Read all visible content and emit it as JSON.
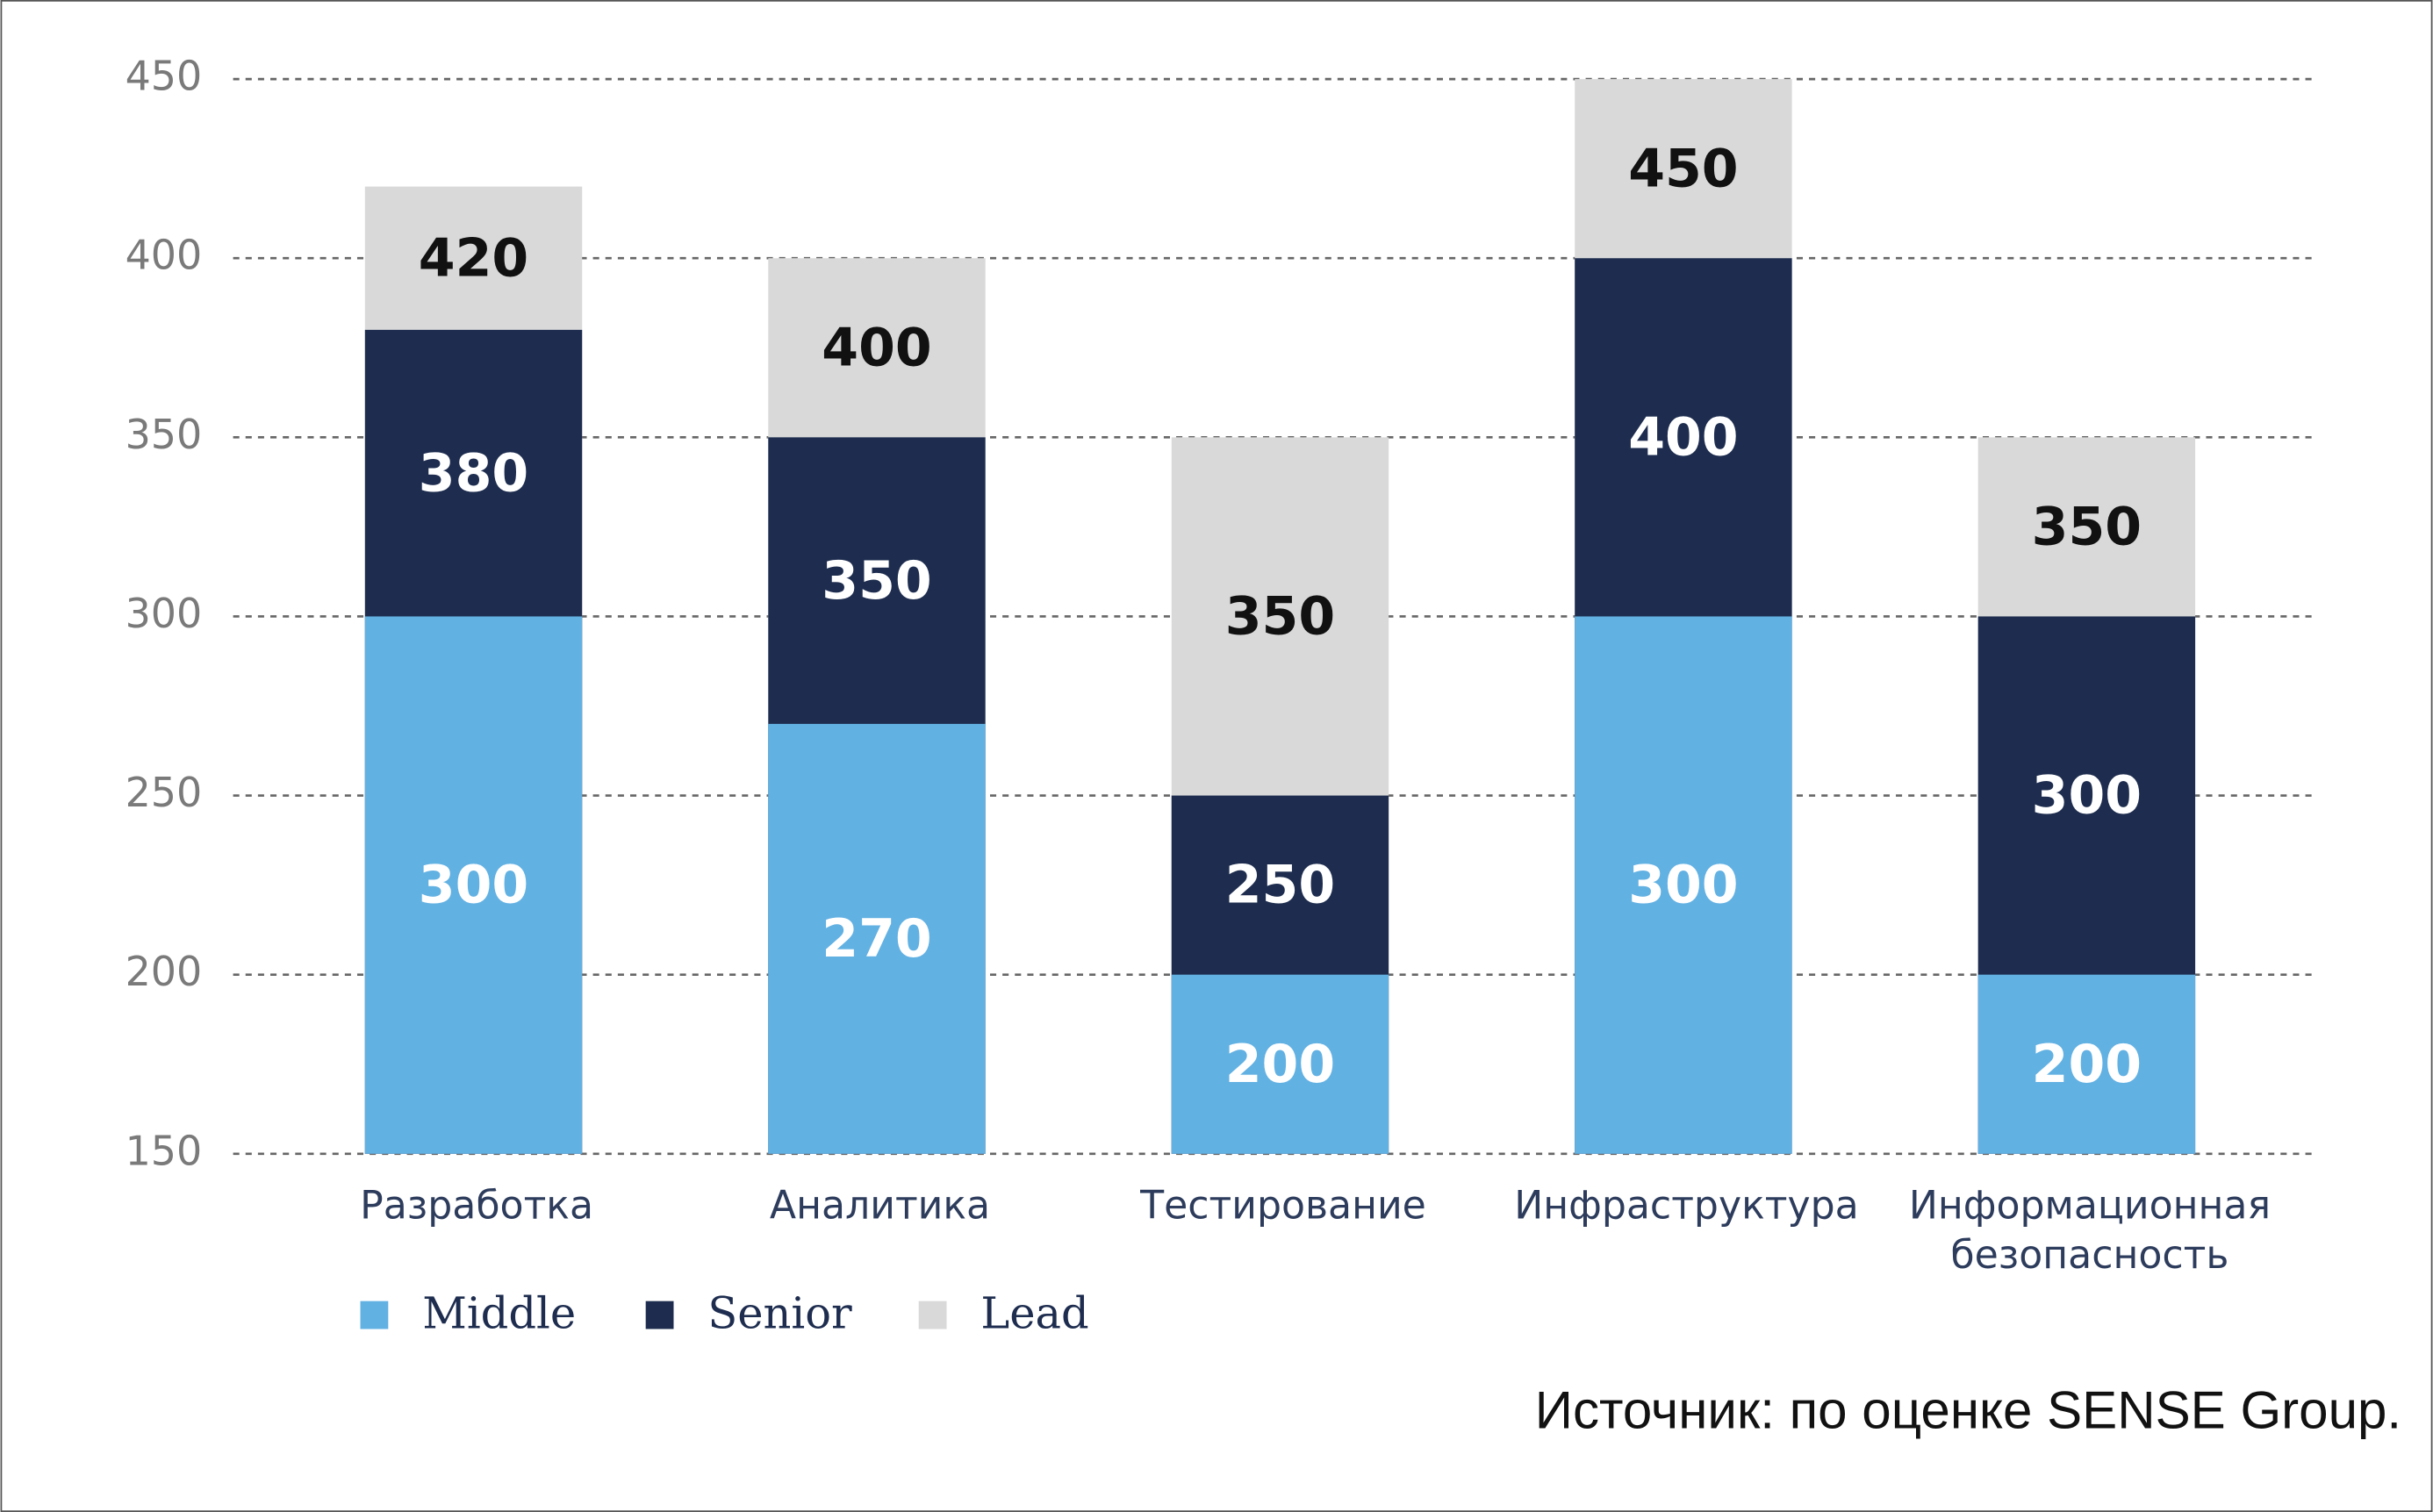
{
  "chart_data": {
    "type": "bar",
    "overlap": true,
    "categories": [
      "Разработка",
      "Аналитика",
      "Тестирование",
      "Инфраструктура",
      "Информационная\nбезопасность"
    ],
    "series": [
      {
        "name": "Middle",
        "color": "#62b1e3",
        "label_color": "#ffffff",
        "values": [
          300,
          270,
          200,
          300,
          200
        ]
      },
      {
        "name": "Senior",
        "color": "#1e2d4f",
        "label_color": "#ffffff",
        "values": [
          380,
          350,
          250,
          400,
          300
        ]
      },
      {
        "name": "Lead",
        "color": "#d9d9d9",
        "label_color": "#111111",
        "values": [
          420,
          400,
          350,
          450,
          350
        ]
      }
    ],
    "ylim": [
      150,
      450
    ],
    "yticks": [
      150,
      200,
      250,
      300,
      350,
      400,
      450
    ],
    "grid": true,
    "legend": "bottom-left",
    "source": "Источник: по оценке SENSE Group."
  }
}
